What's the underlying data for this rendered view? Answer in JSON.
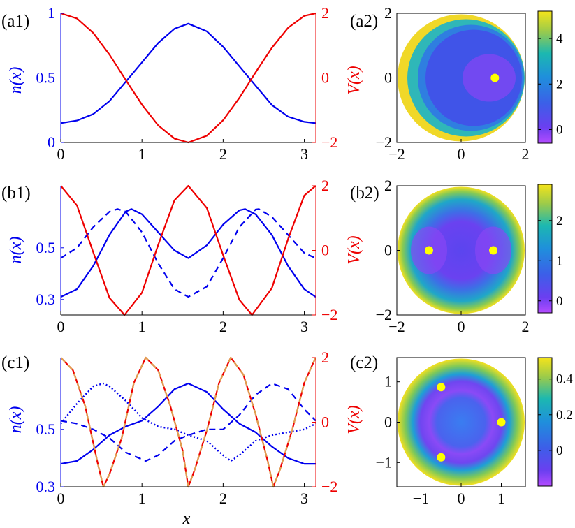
{
  "figure": {
    "xlabel": "x",
    "colors": {
      "density": "#0000ee",
      "potential": "#ee0000",
      "marker": "#ffff00"
    }
  },
  "chart_data": [
    {
      "type": "line",
      "panel": "(a1)",
      "xlabel": "",
      "ylabel": "n(x)",
      "y2label": "V(x)",
      "xlim": [
        0,
        3.1416
      ],
      "ylim": [
        0,
        1
      ],
      "y2lim": [
        -2,
        2
      ],
      "xticks": [
        "0",
        "1",
        "2",
        "3"
      ],
      "yticks": [
        "0",
        "0.5",
        "1"
      ],
      "y2ticks": [
        "-2",
        "0",
        "2"
      ],
      "series": [
        {
          "axis": "left",
          "style": "solid",
          "color": "#0000ee",
          "x": [
            0,
            0.2,
            0.4,
            0.6,
            0.8,
            1.0,
            1.2,
            1.4,
            1.571,
            1.8,
            2.0,
            2.2,
            2.4,
            2.6,
            2.8,
            3.0,
            3.14
          ],
          "values": [
            0.15,
            0.17,
            0.22,
            0.32,
            0.47,
            0.62,
            0.77,
            0.88,
            0.92,
            0.86,
            0.74,
            0.59,
            0.44,
            0.29,
            0.2,
            0.16,
            0.15
          ]
        },
        {
          "axis": "right",
          "style": "solid",
          "color": "#ee0000",
          "x": [
            0,
            0.2,
            0.4,
            0.6,
            0.8,
            1.0,
            1.2,
            1.4,
            1.571,
            1.8,
            2.0,
            2.2,
            2.4,
            2.6,
            2.8,
            3.0,
            3.14
          ],
          "values": [
            2.0,
            1.84,
            1.39,
            0.72,
            -0.06,
            -0.83,
            -1.47,
            -1.88,
            -2.0,
            -1.79,
            -1.31,
            -0.62,
            0.17,
            0.93,
            1.55,
            1.92,
            2.0
          ]
        }
      ]
    },
    {
      "type": "heatmap",
      "panel": "(a2)",
      "xlim": [
        -2,
        2
      ],
      "ylim": [
        -2,
        2
      ],
      "xticks": [
        "-2",
        "0",
        "2"
      ],
      "yticks": [
        "-2",
        "0",
        "2"
      ],
      "colorbar": {
        "min": -0.6,
        "max": 5.2,
        "ticks": [
          "0",
          "2",
          "4"
        ],
        "tick_values": [
          0,
          2,
          4
        ]
      },
      "markers": [
        [
          1.05,
          0.0
        ]
      ]
    },
    {
      "type": "line",
      "panel": "(b1)",
      "xlabel": "",
      "ylabel": "n(x)",
      "y2label": "V(x)",
      "xlim": [
        0,
        3.1416
      ],
      "ylim": [
        0.24,
        0.74
      ],
      "y2lim": [
        -2,
        2
      ],
      "xticks": [
        "0",
        "1",
        "2",
        "3"
      ],
      "yticks": [
        "0.3",
        "0.5"
      ],
      "y2ticks": [
        "-2",
        "0",
        "2"
      ],
      "series": [
        {
          "axis": "left",
          "style": "solid",
          "color": "#0000ee",
          "x": [
            0,
            0.2,
            0.4,
            0.6,
            0.8,
            0.87,
            1.0,
            1.2,
            1.4,
            1.571,
            1.8,
            2.0,
            2.2,
            2.27,
            2.4,
            2.6,
            2.8,
            3.0,
            3.14
          ],
          "values": [
            0.31,
            0.34,
            0.43,
            0.55,
            0.64,
            0.65,
            0.63,
            0.56,
            0.49,
            0.46,
            0.51,
            0.59,
            0.645,
            0.65,
            0.63,
            0.55,
            0.43,
            0.34,
            0.31
          ]
        },
        {
          "axis": "left",
          "style": "dashed",
          "color": "#0000ee",
          "x": [
            0,
            0.2,
            0.4,
            0.6,
            0.7,
            0.8,
            1.0,
            1.2,
            1.4,
            1.571,
            1.8,
            2.0,
            2.2,
            2.4,
            2.44,
            2.6,
            2.8,
            3.0,
            3.14
          ],
          "values": [
            0.46,
            0.5,
            0.58,
            0.64,
            0.65,
            0.64,
            0.56,
            0.44,
            0.34,
            0.31,
            0.35,
            0.46,
            0.58,
            0.648,
            0.65,
            0.62,
            0.55,
            0.48,
            0.46
          ]
        },
        {
          "axis": "right",
          "style": "solid",
          "color": "#ee0000",
          "x": [
            0,
            0.2,
            0.4,
            0.6,
            0.785,
            1.0,
            1.2,
            1.4,
            1.571,
            1.8,
            2.0,
            2.2,
            2.356,
            2.6,
            2.8,
            3.0,
            3.14
          ],
          "values": [
            2.0,
            1.39,
            -0.06,
            -1.47,
            -2.0,
            -1.31,
            0.17,
            1.55,
            2.0,
            1.31,
            -0.15,
            -1.53,
            -2.0,
            -1.17,
            0.35,
            1.7,
            2.0
          ]
        }
      ]
    },
    {
      "type": "heatmap",
      "panel": "(b2)",
      "xlim": [
        -2,
        2
      ],
      "ylim": [
        -2,
        2
      ],
      "xticks": [
        "-2",
        "0",
        "2"
      ],
      "yticks": [
        "-2",
        "0",
        "2"
      ],
      "colorbar": {
        "min": -0.3,
        "max": 2.9,
        "ticks": [
          "0",
          "1",
          "2"
        ],
        "tick_values": [
          0,
          1,
          2
        ]
      },
      "markers": [
        [
          -1.0,
          0.0
        ],
        [
          1.0,
          0.0
        ]
      ]
    },
    {
      "type": "line",
      "panel": "(c1)",
      "xlabel": "x",
      "ylabel": "n(x)",
      "y2label": "V(x)",
      "xlim": [
        0,
        3.1416
      ],
      "ylim": [
        0.3,
        0.75
      ],
      "y2lim": [
        -2,
        2
      ],
      "xticks": [
        "0",
        "1",
        "2",
        "3"
      ],
      "yticks": [
        "0.3",
        "0.5"
      ],
      "y2ticks": [
        "-2",
        "0",
        "2"
      ],
      "series": [
        {
          "axis": "left",
          "style": "solid",
          "color": "#0000ee",
          "x": [
            0,
            0.2,
            0.4,
            0.6,
            0.8,
            1.0,
            1.2,
            1.4,
            1.571,
            1.8,
            2.0,
            2.2,
            2.4,
            2.6,
            2.8,
            3.0,
            3.14
          ],
          "values": [
            0.38,
            0.39,
            0.43,
            0.48,
            0.51,
            0.53,
            0.58,
            0.64,
            0.66,
            0.63,
            0.57,
            0.52,
            0.49,
            0.44,
            0.4,
            0.38,
            0.38
          ]
        },
        {
          "axis": "left",
          "style": "dashed",
          "color": "#0000ee",
          "x": [
            0,
            0.2,
            0.4,
            0.6,
            0.8,
            1.047,
            1.2,
            1.4,
            1.571,
            1.8,
            2.0,
            2.2,
            2.4,
            2.6,
            2.8,
            3.0,
            3.14
          ],
          "values": [
            0.53,
            0.52,
            0.5,
            0.47,
            0.42,
            0.39,
            0.41,
            0.46,
            0.48,
            0.5,
            0.5,
            0.55,
            0.62,
            0.66,
            0.64,
            0.57,
            0.53
          ]
        },
        {
          "axis": "left",
          "style": "dotted",
          "color": "#0000ee",
          "x": [
            0,
            0.2,
            0.4,
            0.524,
            0.6,
            0.8,
            1.0,
            1.2,
            1.4,
            1.571,
            1.8,
            2.0,
            2.094,
            2.2,
            2.4,
            2.6,
            2.8,
            3.0,
            3.14
          ],
          "values": [
            0.52,
            0.59,
            0.65,
            0.66,
            0.65,
            0.6,
            0.54,
            0.51,
            0.5,
            0.48,
            0.46,
            0.41,
            0.39,
            0.41,
            0.46,
            0.48,
            0.49,
            0.5,
            0.52
          ]
        },
        {
          "axis": "right",
          "style": "solid",
          "color": "#ee0000",
          "x": [
            0,
            0.15,
            0.3,
            0.45,
            0.524,
            0.6,
            0.75,
            0.9,
            1.047,
            1.2,
            1.35,
            1.5,
            1.571,
            1.65,
            1.8,
            1.95,
            2.094,
            2.25,
            2.4,
            2.55,
            2.618,
            2.7,
            2.85,
            3.0,
            3.14
          ],
          "values": [
            2.0,
            1.61,
            0.5,
            -1.22,
            -2.0,
            -1.61,
            -0.5,
            1.22,
            2.0,
            1.61,
            0.5,
            -0.87,
            -2.0,
            -1.47,
            -0.25,
            1.22,
            2.0,
            1.47,
            0.25,
            -1.22,
            -2.0,
            -1.47,
            -0.25,
            1.22,
            2.0
          ]
        },
        {
          "axis": "right",
          "style": "dashed",
          "color": "#e0a050",
          "x": [
            0,
            0.15,
            0.3,
            0.45,
            0.524,
            0.6,
            0.75,
            0.9,
            1.047,
            1.2,
            1.35,
            1.5,
            1.571,
            1.65,
            1.8,
            1.95,
            2.094,
            2.25,
            2.4,
            2.55,
            2.618,
            2.7,
            2.85,
            3.0,
            3.14
          ],
          "values": [
            2.0,
            1.61,
            0.5,
            -1.22,
            -2.0,
            -1.61,
            -0.5,
            1.22,
            2.0,
            1.61,
            0.5,
            -0.87,
            -2.0,
            -1.47,
            -0.25,
            1.22,
            2.0,
            1.47,
            0.25,
            -1.22,
            -2.0,
            -1.47,
            -0.25,
            1.22,
            2.0
          ]
        }
      ]
    },
    {
      "type": "heatmap",
      "panel": "(c2)",
      "xlim": [
        -1.6,
        1.6
      ],
      "ylim": [
        -1.6,
        1.6
      ],
      "xticks": [
        "-1",
        "0",
        "1"
      ],
      "yticks": [
        "-1",
        "0",
        "1"
      ],
      "xtick_values": [
        -1,
        0,
        1
      ],
      "ytick_values": [
        -1,
        0,
        1
      ],
      "colorbar": {
        "min": -0.2,
        "max": 0.52,
        "ticks": [
          "0",
          "0.2",
          "0.4"
        ],
        "tick_values": [
          0,
          0.2,
          0.4
        ]
      },
      "markers": [
        [
          -0.5,
          0.87
        ],
        [
          1.0,
          0.0
        ],
        [
          -0.5,
          -0.87
        ]
      ]
    }
  ]
}
